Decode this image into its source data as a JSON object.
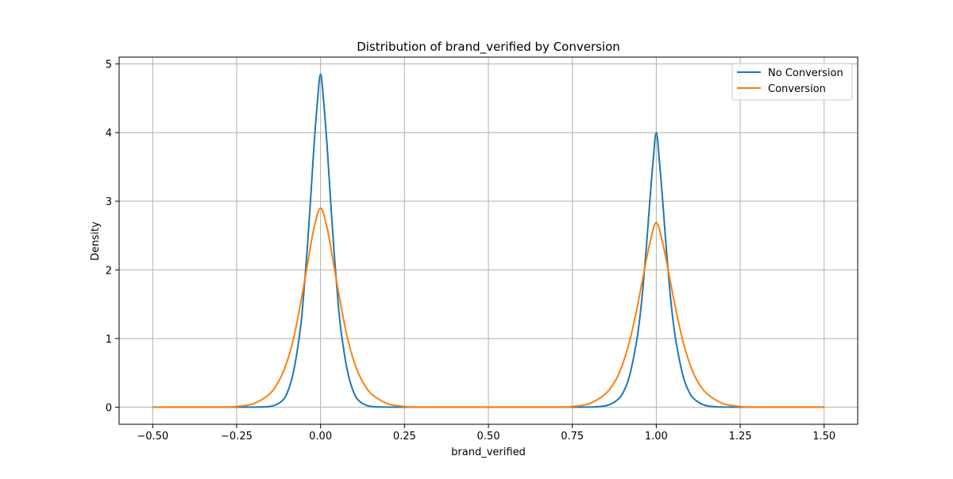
{
  "chart_data": {
    "type": "line",
    "title": "Distribution of  brand_verified by Conversion",
    "xlabel": "brand_verified",
    "ylabel": "Density",
    "xlim": [
      -0.6,
      1.6
    ],
    "ylim": [
      -0.25,
      5.1
    ],
    "x_ticks": [
      -0.5,
      -0.25,
      0.0,
      0.25,
      0.5,
      0.75,
      1.0,
      1.25,
      1.5
    ],
    "x_tick_labels": [
      "−0.50",
      "−0.25",
      "0.00",
      "0.25",
      "0.50",
      "0.75",
      "1.00",
      "1.25",
      "1.50"
    ],
    "y_ticks": [
      0,
      1,
      2,
      3,
      4,
      5
    ],
    "y_tick_labels": [
      "0",
      "1",
      "2",
      "3",
      "4",
      "5"
    ],
    "grid": true,
    "legend_position": "top-right",
    "series": [
      {
        "name": "No Conversion",
        "color": "#1f77b4",
        "x": [
          -0.5,
          -0.25,
          -0.2,
          -0.15,
          -0.12,
          -0.1,
          -0.08,
          -0.06,
          -0.05,
          -0.04,
          -0.03,
          -0.02,
          -0.01,
          0.0,
          0.01,
          0.02,
          0.03,
          0.04,
          0.05,
          0.06,
          0.08,
          0.1,
          0.12,
          0.15,
          0.2,
          0.25,
          0.5,
          0.75,
          0.8,
          0.85,
          0.88,
          0.9,
          0.92,
          0.94,
          0.95,
          0.96,
          0.97,
          0.98,
          0.99,
          1.0,
          1.01,
          1.02,
          1.03,
          1.04,
          1.05,
          1.06,
          1.08,
          1.1,
          1.12,
          1.15,
          1.2,
          1.25,
          1.5
        ],
        "y": [
          0.0,
          0.0,
          0.0,
          0.01,
          0.07,
          0.2,
          0.53,
          1.15,
          1.66,
          2.28,
          3.0,
          3.77,
          4.41,
          4.85,
          4.41,
          3.77,
          3.0,
          2.28,
          1.66,
          1.15,
          0.53,
          0.2,
          0.07,
          0.01,
          0.0,
          0.0,
          0.0,
          0.0,
          0.0,
          0.02,
          0.09,
          0.2,
          0.45,
          0.92,
          1.26,
          1.72,
          2.3,
          2.95,
          3.55,
          4.0,
          3.55,
          2.95,
          2.3,
          1.72,
          1.26,
          0.92,
          0.45,
          0.2,
          0.09,
          0.02,
          0.0,
          0.0,
          0.0
        ]
      },
      {
        "name": "Conversion",
        "color": "#ff7f0e",
        "x": [
          -0.5,
          -0.3,
          -0.25,
          -0.2,
          -0.15,
          -0.12,
          -0.1,
          -0.08,
          -0.06,
          -0.04,
          -0.02,
          0.0,
          0.02,
          0.04,
          0.06,
          0.08,
          0.1,
          0.12,
          0.15,
          0.2,
          0.25,
          0.3,
          0.5,
          0.7,
          0.75,
          0.8,
          0.85,
          0.88,
          0.9,
          0.92,
          0.94,
          0.96,
          0.98,
          1.0,
          1.02,
          1.04,
          1.06,
          1.08,
          1.1,
          1.12,
          1.15,
          1.2,
          1.25,
          1.3,
          1.5
        ],
        "y": [
          0.0,
          0.0,
          0.01,
          0.05,
          0.2,
          0.42,
          0.66,
          1.01,
          1.5,
          2.05,
          2.6,
          2.9,
          2.6,
          2.05,
          1.5,
          1.01,
          0.66,
          0.42,
          0.2,
          0.05,
          0.01,
          0.0,
          0.0,
          0.0,
          0.01,
          0.05,
          0.2,
          0.4,
          0.63,
          0.95,
          1.38,
          1.88,
          2.37,
          2.69,
          2.37,
          1.88,
          1.38,
          0.95,
          0.63,
          0.4,
          0.2,
          0.05,
          0.01,
          0.0,
          0.0
        ]
      }
    ]
  }
}
